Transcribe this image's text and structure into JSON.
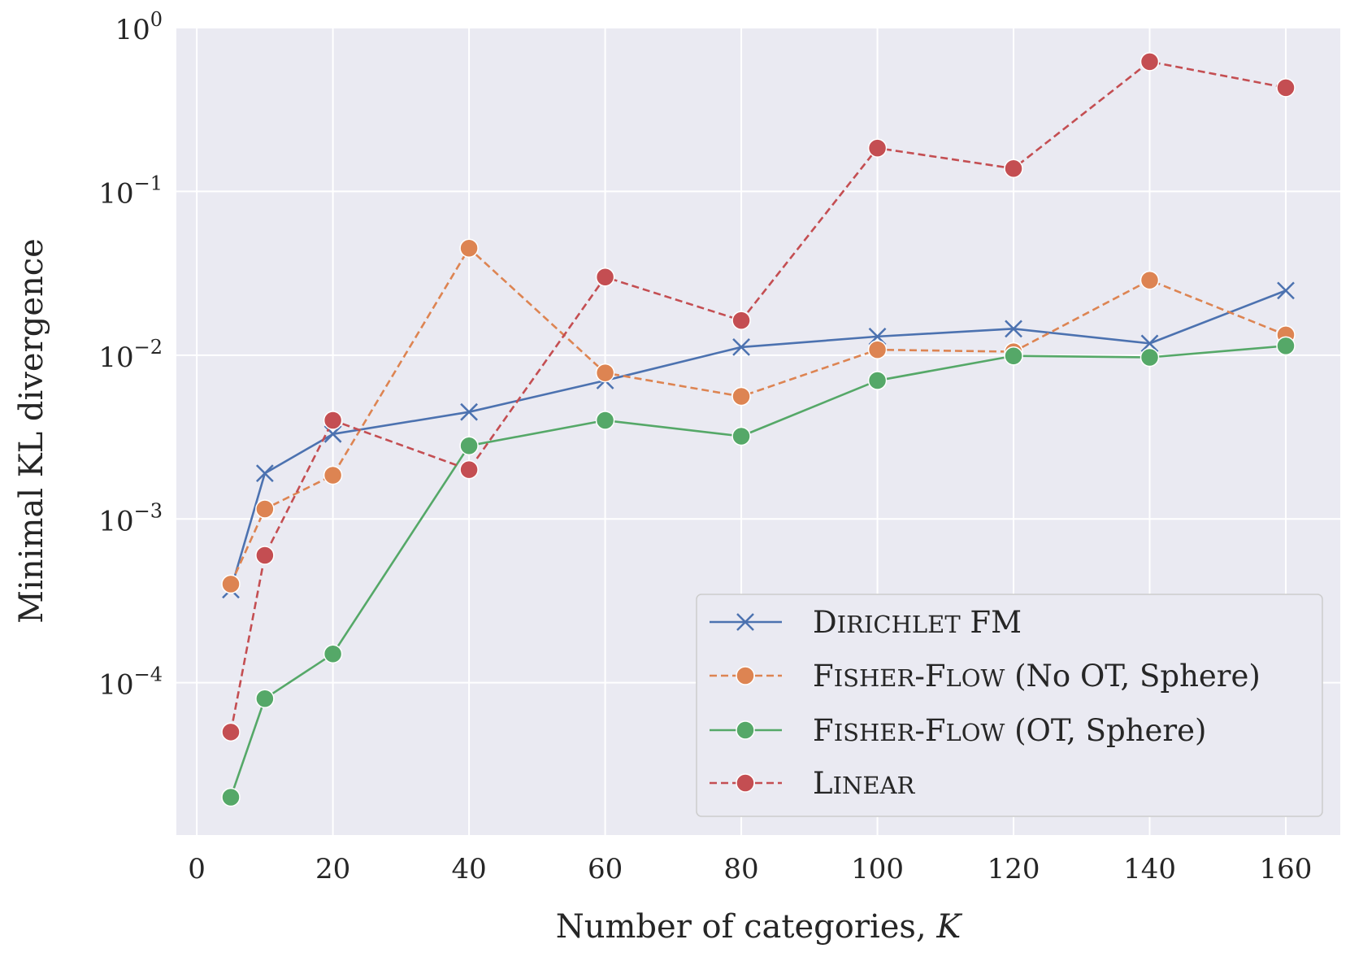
{
  "chart_data": {
    "type": "line",
    "title": "",
    "xlabel": "Number of categories,",
    "xlabel_var": "K",
    "ylabel": "Minimal KL divergence",
    "y_scale": "log",
    "xlim": [
      -3,
      168
    ],
    "ylim_exp": [
      -4.93,
      0
    ],
    "x_ticks": [
      0,
      20,
      40,
      60,
      80,
      100,
      120,
      140,
      160
    ],
    "y_ticks": [
      {
        "exp": 0,
        "base": "10",
        "power": "0"
      },
      {
        "exp": -1,
        "base": "10",
        "power": "−1"
      },
      {
        "exp": -2,
        "base": "10",
        "power": "−2"
      },
      {
        "exp": -3,
        "base": "10",
        "power": "−3"
      },
      {
        "exp": -4,
        "base": "10",
        "power": "−4"
      }
    ],
    "grid": true,
    "legend_position": "bottom-right",
    "x": [
      5,
      10,
      20,
      40,
      60,
      80,
      100,
      120,
      140,
      160
    ],
    "series": [
      {
        "name": "Dirichlet FM",
        "legend_parts": [
          {
            "t": "D",
            "sc": false
          },
          {
            "t": "IRICHLET",
            "sc": true
          },
          {
            "t": " FM",
            "sc": false
          }
        ],
        "color": "#4c72b0",
        "dash": "solid",
        "marker": "x",
        "values": [
          0.00037,
          0.0019,
          0.0033,
          0.0045,
          0.007,
          0.0112,
          0.013,
          0.0145,
          0.0118,
          0.0248
        ]
      },
      {
        "name": "Fisher-Flow (No OT, Sphere)",
        "legend_parts": [
          {
            "t": "F",
            "sc": false
          },
          {
            "t": "ISHER",
            "sc": true
          },
          {
            "t": "-F",
            "sc": false
          },
          {
            "t": "LOW",
            "sc": true
          },
          {
            "t": " (No OT, Sphere)",
            "sc": false
          }
        ],
        "color": "#dd8452",
        "dash": "dashed",
        "marker": "o",
        "values": [
          0.0004,
          0.00115,
          0.00185,
          0.045,
          0.0078,
          0.0056,
          0.0108,
          0.0105,
          0.0287,
          0.0133
        ]
      },
      {
        "name": "Fisher-Flow (OT, Sphere)",
        "legend_parts": [
          {
            "t": "F",
            "sc": false
          },
          {
            "t": "ISHER",
            "sc": true
          },
          {
            "t": "-F",
            "sc": false
          },
          {
            "t": "LOW",
            "sc": true
          },
          {
            "t": " (OT, Sphere)",
            "sc": false
          }
        ],
        "color": "#55a868",
        "dash": "solid",
        "marker": "o",
        "values": [
          2e-05,
          8e-05,
          0.00015,
          0.0028,
          0.004,
          0.0032,
          0.007,
          0.0099,
          0.0097,
          0.0114
        ]
      },
      {
        "name": "Linear",
        "legend_parts": [
          {
            "t": "L",
            "sc": false
          },
          {
            "t": "INEAR",
            "sc": true
          }
        ],
        "color": "#c44e52",
        "dash": "dashed",
        "marker": "o",
        "values": [
          5e-05,
          0.0006,
          0.004,
          0.002,
          0.03,
          0.0163,
          0.184,
          0.138,
          0.62,
          0.43
        ]
      }
    ]
  }
}
